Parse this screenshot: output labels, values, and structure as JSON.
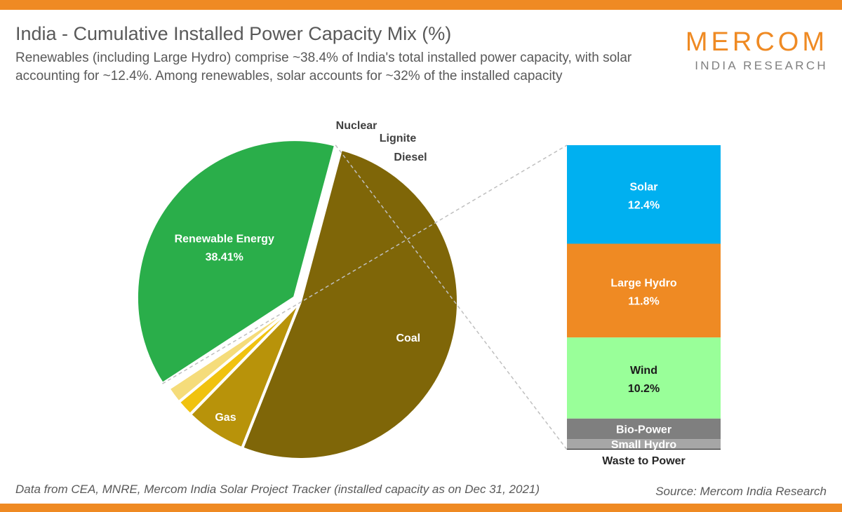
{
  "header": {
    "title": "India - Cumulative Installed Power Capacity Mix (%)",
    "subtitle": "Renewables (including Large Hydro) comprise ~38.4% of India's total installed power capacity, with solar accounting for ~12.4%. Among renewables, solar accounts for ~32% of the installed capacity"
  },
  "logo": {
    "main": "MERCOM",
    "sub": "INDIA RESEARCH"
  },
  "footer": {
    "left": "Data from CEA, MNRE, Mercom India Solar Project Tracker  (installed capacity as on Dec 31, 2021)",
    "right": "Source: Mercom India Research"
  },
  "colors": {
    "accent": "#ef8a23",
    "coal": "#7f6608",
    "gas": "#b8930a",
    "nuclear": "#f0c20f",
    "lignite": "#f5dc7a",
    "diesel": "#fae9a7",
    "renewable": "#2aae4a",
    "solar": "#00b0f0",
    "large_hydro": "#ef8a23",
    "wind": "#99ff99",
    "bio_power": "#7f7f7f",
    "small_hydro": "#a6a6a6",
    "waste_to_power": "#262626"
  },
  "chart_data": {
    "type": "bar-of-pie",
    "title": "India - Cumulative Installed Power Capacity Mix (%)",
    "pie": {
      "type": "pie",
      "slices": [
        {
          "label": "Coal",
          "value": 51.9,
          "color_key": "coal",
          "show_label": true
        },
        {
          "label": "Gas",
          "value": 6.3,
          "color_key": "gas",
          "show_label": true
        },
        {
          "label": "Nuclear",
          "value": 1.7,
          "color_key": "nuclear",
          "show_label": true
        },
        {
          "label": "Lignite",
          "value": 1.7,
          "color_key": "lignite",
          "show_label": true
        },
        {
          "label": "Diesel",
          "value": 0.1,
          "color_key": "diesel",
          "show_label": true
        },
        {
          "label": "Renewable Energy",
          "value": 38.41,
          "value_label": "38.41%",
          "color_key": "renewable",
          "show_label": true
        }
      ]
    },
    "breakdown": {
      "type": "stacked-bar",
      "parent": "Renewable Energy",
      "segments": [
        {
          "label": "Solar",
          "value": 12.4,
          "value_label": "12.4%",
          "color_key": "solar"
        },
        {
          "label": "Large Hydro",
          "value": 11.8,
          "value_label": "11.8%",
          "color_key": "large_hydro"
        },
        {
          "label": "Wind",
          "value": 10.2,
          "value_label": "10.2%",
          "color_key": "wind"
        },
        {
          "label": "Bio-Power",
          "value": 2.6,
          "color_key": "bio_power"
        },
        {
          "label": "Small Hydro",
          "value": 1.2,
          "color_key": "small_hydro"
        },
        {
          "label": "Waste to Power",
          "value": 0.1,
          "color_key": "waste_to_power"
        }
      ]
    }
  }
}
